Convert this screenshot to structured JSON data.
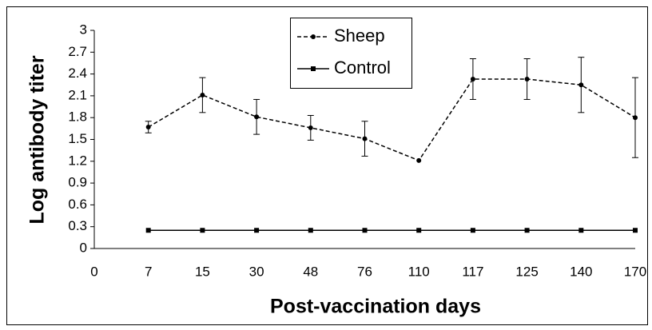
{
  "chart_data": {
    "type": "line",
    "y_label": "Log antibody titer",
    "x_label": "Post-vaccination days",
    "categories": [
      "0",
      "7",
      "15",
      "30",
      "48",
      "76",
      "110",
      "117",
      "125",
      "140",
      "170"
    ],
    "series": [
      {
        "name": "Sheep",
        "color": "#000000",
        "line_style": "dashed",
        "marker": "circle",
        "values": [
          null,
          1.67,
          2.11,
          1.81,
          1.66,
          1.51,
          1.21,
          2.33,
          2.33,
          2.25,
          1.8
        ],
        "errors": [
          null,
          0.08,
          0.24,
          0.24,
          0.17,
          0.24,
          null,
          0.28,
          0.28,
          0.38,
          0.55
        ]
      },
      {
        "name": "Control",
        "color": "#000000",
        "line_style": "solid",
        "marker": "square",
        "values": [
          null,
          0.25,
          0.25,
          0.25,
          0.25,
          0.25,
          0.25,
          0.25,
          0.25,
          0.25,
          0.25
        ]
      }
    ],
    "ylim": [
      0,
      3
    ],
    "yticks": [
      0,
      0.3,
      0.6,
      0.9,
      1.2,
      1.5,
      1.8,
      2.1,
      2.4,
      2.7,
      3
    ],
    "grid": false
  }
}
